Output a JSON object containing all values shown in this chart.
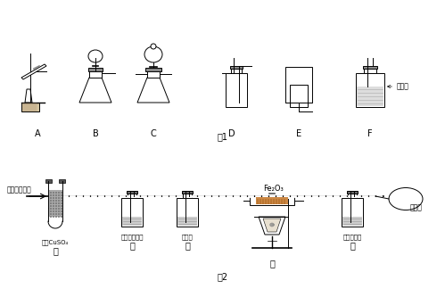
{
  "fig1_label": "图1",
  "fig2_label": "图2",
  "apparatus_labels_fig1": [
    "A",
    "B",
    "C",
    "D",
    "E",
    "F"
  ],
  "apparatus_labels_fig2": [
    "甲",
    "乙",
    "丙",
    "丁",
    "戊"
  ],
  "apparatus_sublabels_fig2": [
    "无水CuSO₄",
    "氢氧化钠溶液",
    "浓硫酸",
    "",
    "澄清石灰水"
  ],
  "fig1_title": "图1",
  "fig2_title": "图2",
  "input_label": "甲烷燃烧产物",
  "fe2o3_label": "Fe₂O₃",
  "balloon_label": "大气球",
  "conc_h2so4_label": "浓硫酸",
  "bg_color": "#ffffff",
  "line_color": "#000000",
  "fill_color": "#e8e8e8",
  "liquid_color": "#cccccc"
}
